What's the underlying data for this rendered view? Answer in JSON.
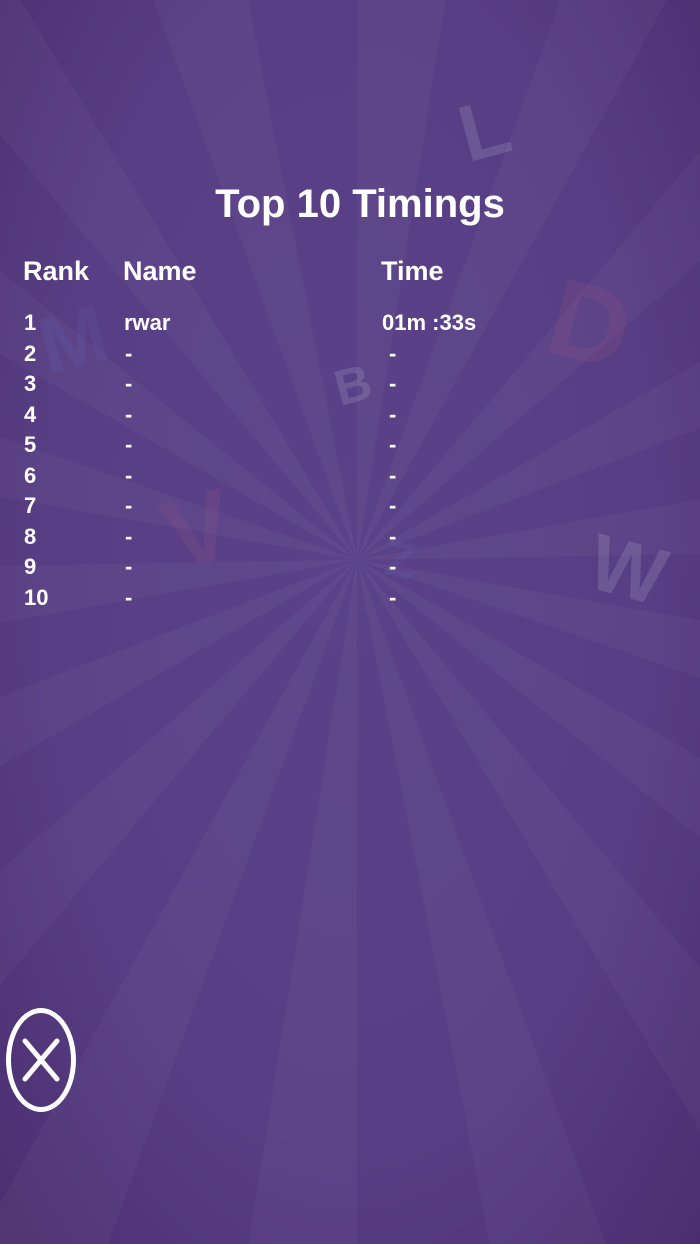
{
  "title": "Top 10 Timings",
  "headers": {
    "rank": "Rank",
    "name": "Name",
    "time": "Time"
  },
  "rows": [
    {
      "rank": "1",
      "name": "rwar",
      "time": "01m :33s"
    },
    {
      "rank": "2",
      "name": "-",
      "time": "-"
    },
    {
      "rank": "3",
      "name": "-",
      "time": "-"
    },
    {
      "rank": "4",
      "name": "-",
      "time": "-"
    },
    {
      "rank": "5",
      "name": "-",
      "time": "-"
    },
    {
      "rank": "6",
      "name": "-",
      "time": "-"
    },
    {
      "rank": "7",
      "name": "-",
      "time": "-"
    },
    {
      "rank": "8",
      "name": "-",
      "time": "-"
    },
    {
      "rank": "9",
      "name": "-",
      "time": "-"
    },
    {
      "rank": "10",
      "name": "-",
      "time": "-"
    }
  ],
  "close_button": {
    "icon": "close-x-icon"
  },
  "colors": {
    "background": "#583e84",
    "text": "#ffffff"
  }
}
